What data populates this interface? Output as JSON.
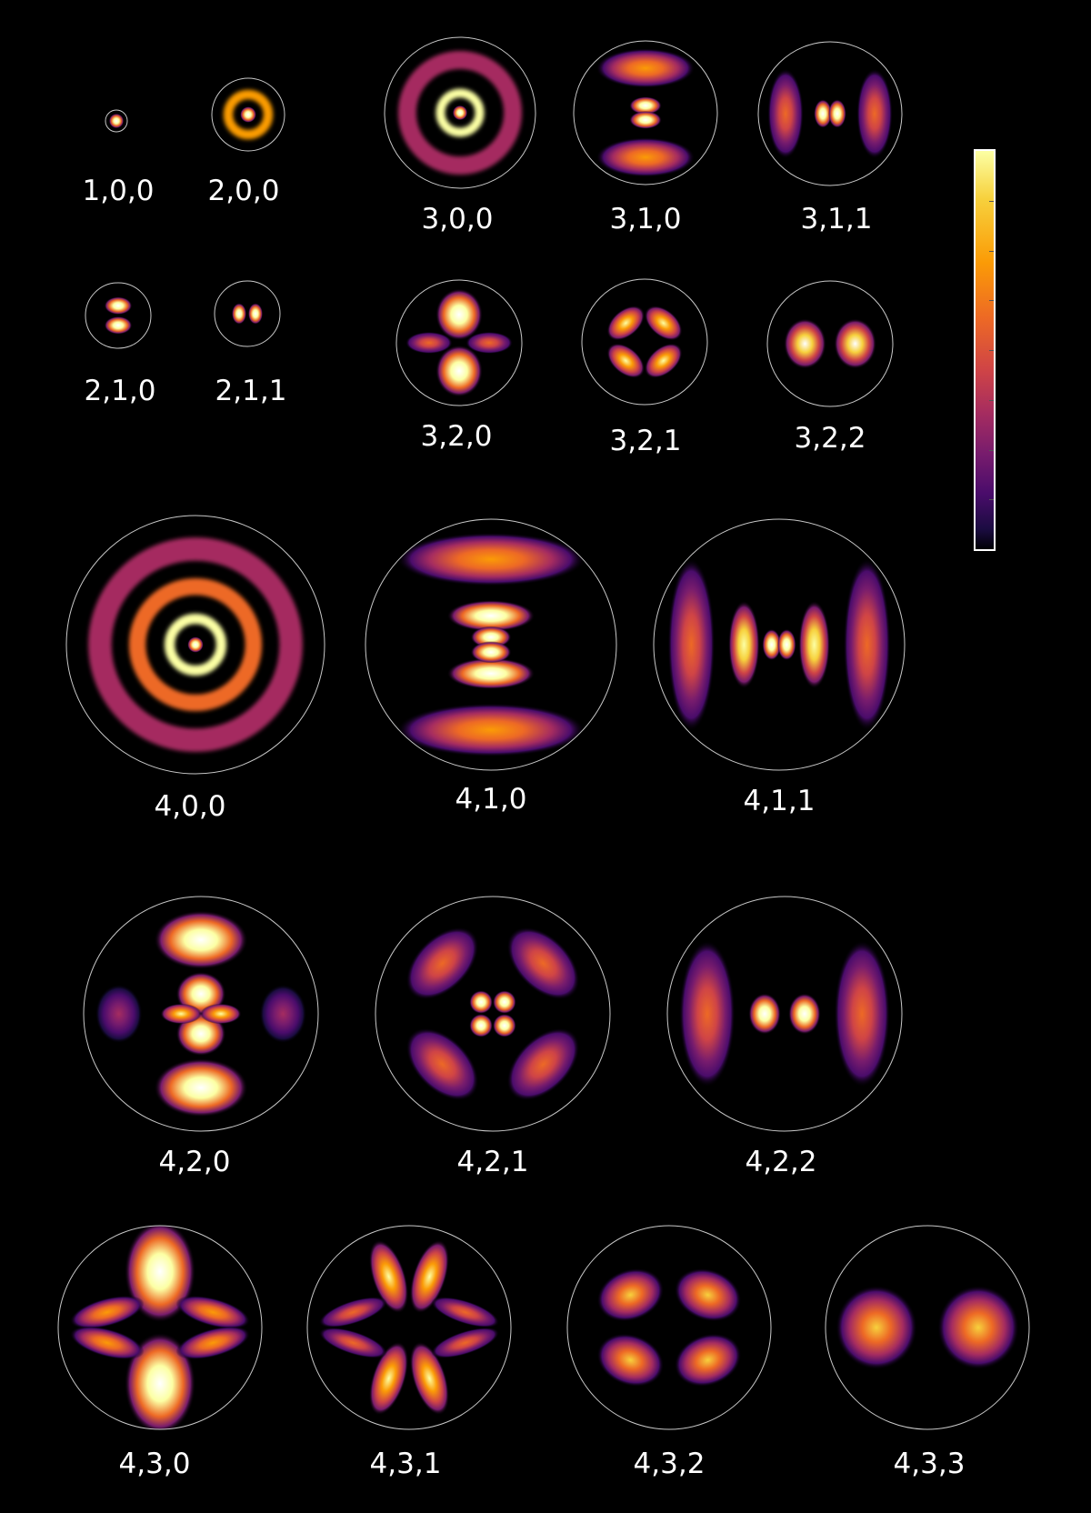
{
  "colormap": [
    "#000004",
    "#1b0c41",
    "#4a0c6b",
    "#781c6d",
    "#a52c60",
    "#cf4446",
    "#ed6925",
    "#fb9b06",
    "#f7d13d",
    "#fcffa4",
    "#ffffff"
  ],
  "orbitals": [
    {
      "n": 1,
      "l": 0,
      "m": 0,
      "label": "1,0,0"
    },
    {
      "n": 2,
      "l": 0,
      "m": 0,
      "label": "2,0,0"
    },
    {
      "n": 2,
      "l": 1,
      "m": 0,
      "label": "2,1,0"
    },
    {
      "n": 2,
      "l": 1,
      "m": 1,
      "label": "2,1,1"
    },
    {
      "n": 3,
      "l": 0,
      "m": 0,
      "label": "3,0,0"
    },
    {
      "n": 3,
      "l": 1,
      "m": 0,
      "label": "3,1,0"
    },
    {
      "n": 3,
      "l": 1,
      "m": 1,
      "label": "3,1,1"
    },
    {
      "n": 3,
      "l": 2,
      "m": 0,
      "label": "3,2,0"
    },
    {
      "n": 3,
      "l": 2,
      "m": 1,
      "label": "3,2,1"
    },
    {
      "n": 3,
      "l": 2,
      "m": 2,
      "label": "3,2,2"
    },
    {
      "n": 4,
      "l": 0,
      "m": 0,
      "label": "4,0,0"
    },
    {
      "n": 4,
      "l": 1,
      "m": 0,
      "label": "4,1,0"
    },
    {
      "n": 4,
      "l": 1,
      "m": 1,
      "label": "4,1,1"
    },
    {
      "n": 4,
      "l": 2,
      "m": 0,
      "label": "4,2,0"
    },
    {
      "n": 4,
      "l": 2,
      "m": 1,
      "label": "4,2,1"
    },
    {
      "n": 4,
      "l": 2,
      "m": 2,
      "label": "4,2,2"
    },
    {
      "n": 4,
      "l": 3,
      "m": 0,
      "label": "4,3,0"
    },
    {
      "n": 4,
      "l": 3,
      "m": 1,
      "label": "4,3,1"
    },
    {
      "n": 4,
      "l": 3,
      "m": 2,
      "label": "4,3,2"
    },
    {
      "n": 4,
      "l": 3,
      "m": 3,
      "label": "4,3,3"
    }
  ]
}
